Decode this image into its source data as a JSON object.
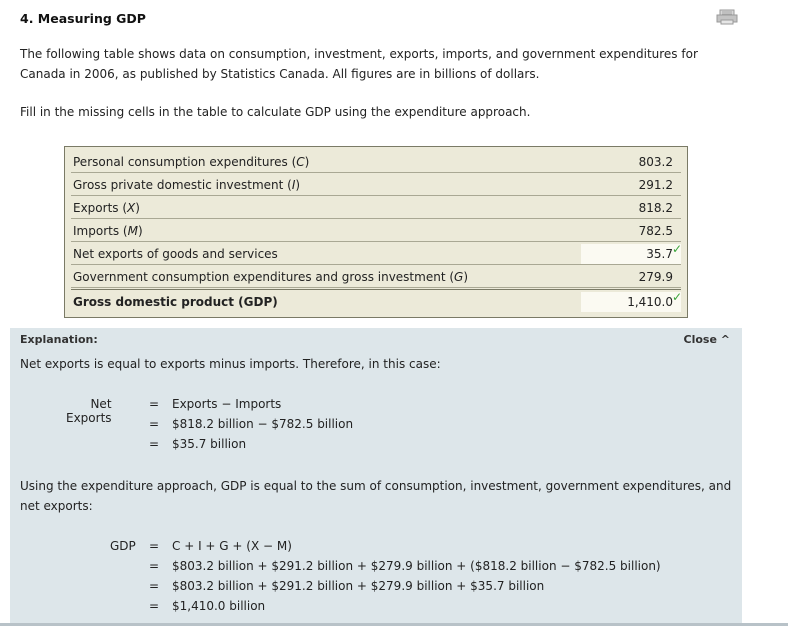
{
  "heading": "4. Measuring GDP",
  "intro": "The following table shows data on consumption, investment, exports, imports, and government expenditures for Canada in 2006, as published by Statistics Canada. All figures are in billions of dollars.",
  "instruction": "Fill in the missing cells in the table to calculate GDP using the expenditure approach.",
  "table": {
    "rows": [
      {
        "label_text": "Personal consumption expenditures (",
        "var": "C",
        "value": "803.2"
      },
      {
        "label_text": "Gross private domestic investment (",
        "var": "I",
        "value": "291.2"
      },
      {
        "label_text": "Exports (",
        "var": "X",
        "value": "818.2"
      },
      {
        "label_text": "Imports (",
        "var": "M",
        "value": "782.5"
      },
      {
        "label_text": "Net exports of goods and services",
        "var": "",
        "value": "35.7"
      },
      {
        "label_text": "Government consumption expenditures and gross investment (",
        "var": "G",
        "value": "279.9"
      },
      {
        "label_text": "Gross domestic product (GDP)",
        "var": "",
        "value": "1,410.0"
      }
    ],
    "check_mark": "✓"
  },
  "explanation": {
    "title": "Explanation:",
    "close_label": "Close ^",
    "para1": "Net exports is equal to exports minus imports. Therefore, in this case:",
    "net_exports": {
      "label": "Net Exports",
      "sign": "=",
      "lines": [
        "Exports − Imports",
        "$818.2 billion − $782.5 billion",
        "$35.7 billion"
      ]
    },
    "para2": "Using the expenditure approach, GDP is equal to the sum of consumption, investment, government expenditures, and net exports:",
    "gdp": {
      "label": "GDP",
      "sign": "=",
      "lines": [
        "C + I + G + (X − M)",
        "$803.2 billion + $291.2 billion + $279.9 billion + ($818.2 billion − $782.5 billion)",
        "$803.2 billion + $291.2 billion + $279.9 billion + $35.7 billion",
        "$1,410.0 billion"
      ]
    }
  }
}
